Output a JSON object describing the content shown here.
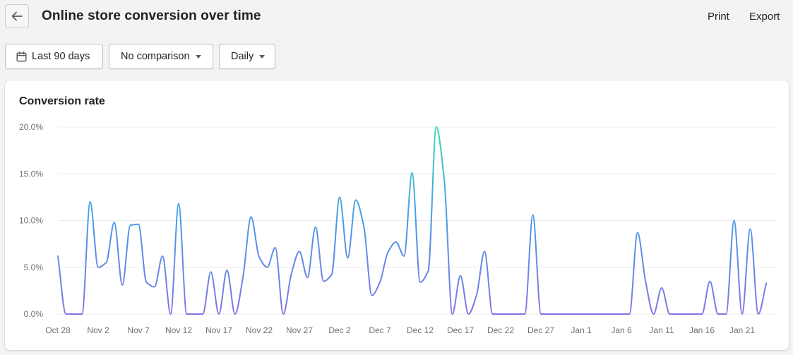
{
  "header": {
    "title": "Online store conversion over time",
    "print_label": "Print",
    "export_label": "Export",
    "back_icon": "arrow-left-icon"
  },
  "filters": {
    "date_range": "Last 90 days",
    "comparison": "No comparison",
    "interval": "Daily"
  },
  "card": {
    "title": "Conversion rate"
  },
  "colors": {
    "line_low": "#8275e6",
    "line_mid": "#4a9be8",
    "line_high": "#36dcb0",
    "grid": "#ececec",
    "tick_text": "#6d7175"
  },
  "chart_data": {
    "type": "line",
    "title": "Conversion rate",
    "xlabel": "",
    "ylabel": "",
    "ylim": [
      0,
      20
    ],
    "y_ticks": [
      "0.0%",
      "5.0%",
      "10.0%",
      "15.0%",
      "20.0%"
    ],
    "x_tick_labels": [
      "Oct 28",
      "Nov 2",
      "Nov 7",
      "Nov 12",
      "Nov 17",
      "Nov 22",
      "Nov 27",
      "Dec 2",
      "Dec 7",
      "Dec 12",
      "Dec 17",
      "Dec 22",
      "Dec 27",
      "Jan 1",
      "Jan 6",
      "Jan 11",
      "Jan 16",
      "Jan 21"
    ],
    "grid": true,
    "legend": "none",
    "series": [
      {
        "x": [
          "Oct 28",
          "Oct 29",
          "Oct 30",
          "Oct 31",
          "Nov 1",
          "Nov 2",
          "Nov 3",
          "Nov 4",
          "Nov 5",
          "Nov 6",
          "Nov 7",
          "Nov 8",
          "Nov 9",
          "Nov 10",
          "Nov 11",
          "Nov 12",
          "Nov 13",
          "Nov 14",
          "Nov 15",
          "Nov 16",
          "Nov 17",
          "Nov 18",
          "Nov 19",
          "Nov 20",
          "Nov 21",
          "Nov 22",
          "Nov 23",
          "Nov 24",
          "Nov 25",
          "Nov 26",
          "Nov 27",
          "Nov 28",
          "Nov 29",
          "Nov 30",
          "Dec 1",
          "Dec 2",
          "Dec 3",
          "Dec 4",
          "Dec 5",
          "Dec 6",
          "Dec 7",
          "Dec 8",
          "Dec 9",
          "Dec 10",
          "Dec 11",
          "Dec 12",
          "Dec 13",
          "Dec 14",
          "Dec 15",
          "Dec 16",
          "Dec 17",
          "Dec 18",
          "Dec 19",
          "Dec 20",
          "Dec 21",
          "Dec 22",
          "Dec 23",
          "Dec 24",
          "Dec 25",
          "Dec 26",
          "Dec 27",
          "Dec 28",
          "Dec 29",
          "Dec 30",
          "Dec 31",
          "Jan 1",
          "Jan 2",
          "Jan 3",
          "Jan 4",
          "Jan 5",
          "Jan 6",
          "Jan 7",
          "Jan 8",
          "Jan 9",
          "Jan 10",
          "Jan 11",
          "Jan 12",
          "Jan 13",
          "Jan 14",
          "Jan 15",
          "Jan 16",
          "Jan 17",
          "Jan 18",
          "Jan 19",
          "Jan 20",
          "Jan 21",
          "Jan 22",
          "Jan 23",
          "Jan 24"
        ],
        "values": [
          6.2,
          0,
          0,
          0,
          12.0,
          5.0,
          5.5,
          9.8,
          3.1,
          9.5,
          9.6,
          3.4,
          2.9,
          6.2,
          0,
          11.8,
          0,
          0,
          0,
          4.5,
          0,
          4.7,
          0,
          4.0,
          10.4,
          6.1,
          5.0,
          7.1,
          0,
          4.3,
          6.7,
          3.9,
          9.3,
          3.5,
          4.2,
          12.5,
          6.0,
          12.2,
          9.4,
          2.0,
          3.4,
          6.6,
          7.7,
          6.2,
          15.1,
          3.4,
          4.6,
          20.0,
          14.3,
          0,
          4.1,
          0,
          2.0,
          6.7,
          0,
          0,
          0,
          0,
          0,
          10.6,
          0,
          0,
          0,
          0,
          0,
          0,
          0,
          0,
          0,
          0,
          0,
          0,
          8.7,
          3.5,
          0,
          2.8,
          0,
          0,
          0,
          0,
          0,
          3.5,
          0,
          0,
          10.0,
          0,
          9.1,
          0,
          3.3
        ]
      }
    ]
  }
}
